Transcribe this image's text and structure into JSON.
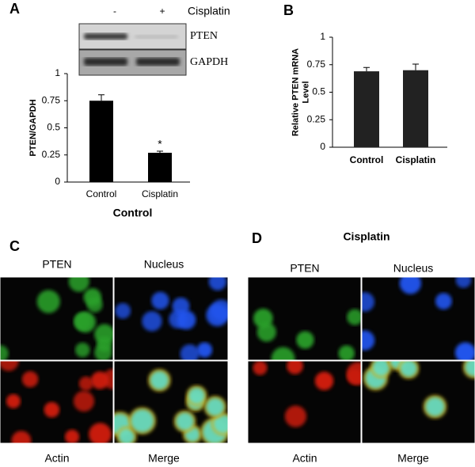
{
  "chart_data": [
    {
      "type": "bar",
      "panel": "A",
      "ylabel": [
        "PTEN/GAPDH"
      ],
      "xlabel": "Control",
      "categories": [
        "Control",
        "Cisplatin"
      ],
      "values": [
        0.75,
        0.27
      ],
      "errors": [
        0.055,
        0.015
      ],
      "value_annotations": [
        null,
        "*"
      ],
      "color": "#000000",
      "ylim": [
        0,
        1
      ],
      "yticks": [
        0,
        0.25,
        0.5,
        0.75,
        1
      ]
    },
    {
      "type": "bar",
      "panel": "B",
      "ylabel": [
        "Relative PTEN mRNA",
        "Level"
      ],
      "categories": [
        "Control",
        "Cisplatin"
      ],
      "values": [
        0.69,
        0.7
      ],
      "errors": [
        0.035,
        0.055
      ],
      "color": "#222222",
      "ylim": [
        0,
        1
      ],
      "yticks": [
        0,
        0.25,
        0.5,
        0.75,
        1
      ]
    }
  ],
  "blot": {
    "lanes": [
      "-",
      "+"
    ],
    "treatment": "Cisplatin",
    "bands": [
      "PTEN",
      "GAPDH"
    ]
  },
  "microscopy": [
    {
      "panel": "C",
      "channels": [
        "PTEN",
        "Nucleus",
        "Actin",
        "Merge"
      ]
    },
    {
      "panel": "D",
      "title": "Cisplatin",
      "channels": [
        "PTEN",
        "Nucleus",
        "Actin",
        "Merge"
      ]
    }
  ]
}
